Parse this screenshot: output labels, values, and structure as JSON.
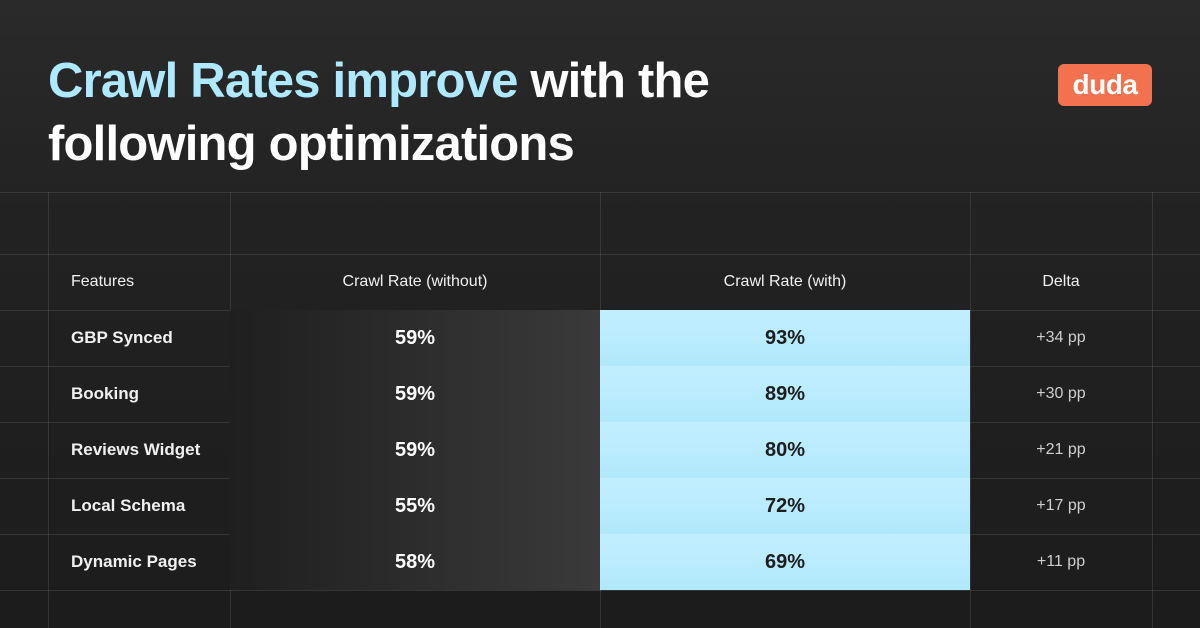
{
  "title": {
    "highlight": "Crawl Rates improve",
    "rest": " with the following  optimizations"
  },
  "brand": {
    "logo_text": "duda",
    "logo_color": "#f2714e",
    "accent": "#aee9ff"
  },
  "chart_data": {
    "type": "table",
    "columns": [
      "Features",
      "Crawl Rate (without)",
      "Crawl Rate (with)",
      "Delta"
    ],
    "rows": [
      {
        "feature": "GBP Synced",
        "without": "59%",
        "with": "93%",
        "delta": "+34 pp"
      },
      {
        "feature": "Booking",
        "without": "59%",
        "with": "89%",
        "delta": "+30 pp"
      },
      {
        "feature": "Reviews Widget",
        "without": "59%",
        "with": "80%",
        "delta": "+21 pp"
      },
      {
        "feature": "Local  Schema",
        "without": "55%",
        "with": "72%",
        "delta": "+17 pp"
      },
      {
        "feature": "Dynamic Pages",
        "without": "58%",
        "with": "69%",
        "delta": "+11 pp"
      }
    ]
  }
}
